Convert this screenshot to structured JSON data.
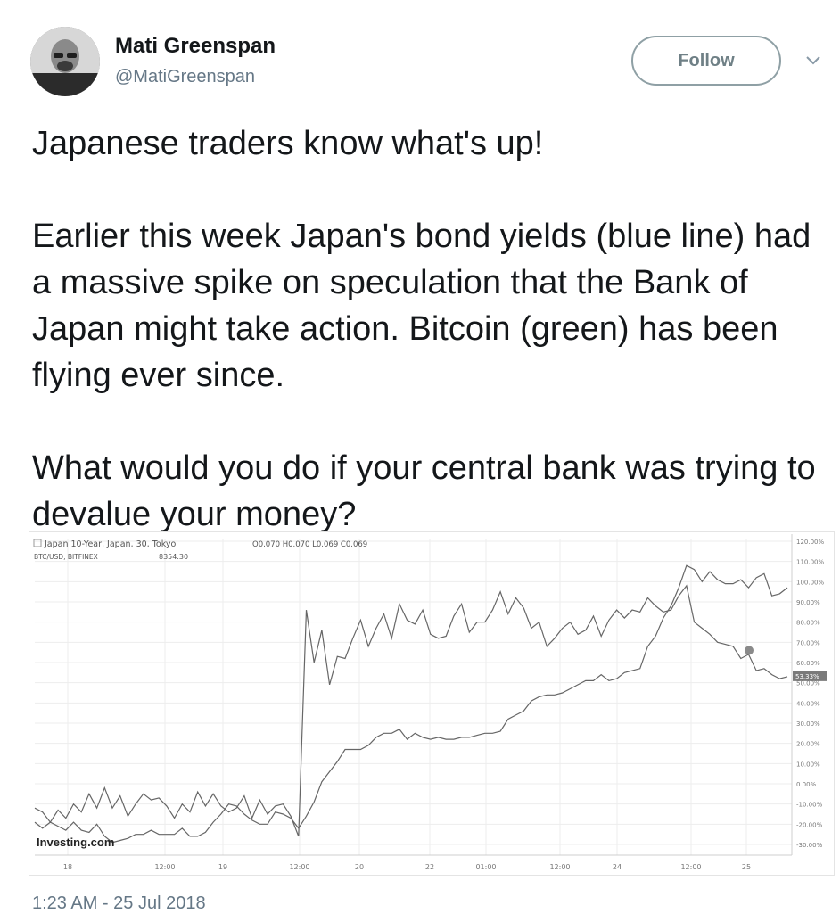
{
  "author": {
    "name": "Mati Greenspan",
    "handle": "@MatiGreenspan"
  },
  "follow_label": "Follow",
  "tweet": {
    "paragraphs": [
      "Japanese traders know what's up!",
      "Earlier this week Japan's bond yields (blue line) had a massive spike on speculation that the Bank of Japan might take action. Bitcoin (green) has been flying ever since.",
      "What would you do if your central bank was trying to devalue your money?"
    ]
  },
  "timestamp": "1:23 AM - 25 Jul 2018",
  "chart_data": {
    "type": "line",
    "legend": [
      {
        "name": "Japan 10-Year, Japan, 30, Tokyo",
        "ohlc": "O0.070 H0.070 L0.069 C0.069"
      },
      {
        "name": "BTC/USD, BITFINEX",
        "ohlc": "8354.30"
      }
    ],
    "watermark": "Investing.com",
    "x_ticks": [
      "18",
      "12:00",
      "19",
      "12:00",
      "20",
      "22",
      "01:00",
      "12:00",
      "24",
      "12:00",
      "25"
    ],
    "y_ticks": [
      "120.00%",
      "110.00%",
      "100.00%",
      "90.00%",
      "80.00%",
      "70.00%",
      "60.00%",
      "50.00%",
      "40.00%",
      "30.00%",
      "20.00%",
      "10.00%",
      "0.00%",
      "-10.00%",
      "-20.00%",
      "-30.00%"
    ],
    "ylim": [
      -30,
      120
    ],
    "last_label": "53.33%",
    "colors": {
      "line": "#666666",
      "grid": "#ededed",
      "axis": "#cfcfcf",
      "text": "#777777"
    },
    "series": [
      {
        "name": "Japan 10-Year",
        "values": [
          -12,
          -14,
          -19,
          -13,
          -17,
          -10,
          -14,
          -5,
          -12,
          -2,
          -12,
          -6,
          -16,
          -10,
          -5,
          -8,
          -7,
          -11,
          -17,
          -10,
          -14,
          -4,
          -11,
          -5,
          -11,
          -14,
          -12,
          -6,
          -17,
          -8,
          -15,
          -11,
          -10,
          -16,
          -26,
          86,
          60,
          76,
          49,
          63,
          62,
          72,
          81,
          68,
          77,
          84,
          72,
          89,
          81,
          79,
          86,
          74,
          72,
          73,
          83,
          89,
          75,
          80,
          80,
          86,
          95,
          84,
          92,
          87,
          77,
          80,
          68,
          72,
          77,
          80,
          74,
          76,
          83,
          73,
          81,
          86,
          82,
          86,
          85,
          92,
          88,
          85,
          86,
          93,
          98,
          80,
          77,
          74,
          70,
          69,
          68,
          62,
          64,
          56,
          57,
          54,
          52,
          53
        ]
      },
      {
        "name": "BTC/USD",
        "values": [
          -19,
          -22,
          -19,
          -21,
          -23,
          -19,
          -23,
          -24,
          -20,
          -26,
          -29,
          -28,
          -27,
          -25,
          -25,
          -23,
          -25,
          -25,
          -25,
          -22,
          -26,
          -26,
          -24,
          -19,
          -15,
          -10,
          -11,
          -15,
          -18,
          -20,
          -20,
          -14,
          -15,
          -17,
          -22,
          -16,
          -9,
          1,
          6,
          11,
          17,
          17,
          17,
          19,
          23,
          25,
          25,
          27,
          22,
          25,
          23,
          22,
          23,
          22,
          22,
          23,
          23,
          24,
          25,
          25,
          26,
          32,
          34,
          36,
          41,
          43,
          44,
          44,
          45,
          47,
          49,
          51,
          51,
          54,
          51,
          52,
          55,
          56,
          57,
          68,
          73,
          82,
          88,
          97,
          108,
          106,
          100,
          105,
          101,
          99,
          99,
          101,
          97,
          102,
          104,
          93,
          94,
          97
        ]
      }
    ]
  }
}
